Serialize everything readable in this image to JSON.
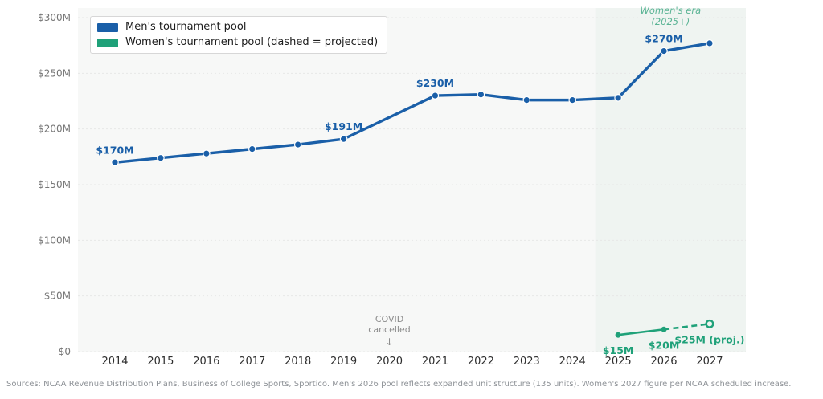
{
  "chart_data": {
    "type": "line",
    "title": "",
    "xlabel": "",
    "ylabel": "",
    "x_ticks": [
      "2014",
      "2015",
      "2016",
      "2017",
      "2018",
      "2019",
      "2020",
      "2021",
      "2022",
      "2023",
      "2024",
      "2025",
      "2026",
      "2027"
    ],
    "y_ticks": [
      {
        "value": 0,
        "label": "$0"
      },
      {
        "value": 50,
        "label": "$50M"
      },
      {
        "value": 100,
        "label": "$100M"
      },
      {
        "value": 150,
        "label": "$150M"
      },
      {
        "value": 200,
        "label": "$200M"
      },
      {
        "value": 250,
        "label": "$250M"
      },
      {
        "value": 300,
        "label": "$300M"
      }
    ],
    "ylim": [
      0,
      300
    ],
    "grid": true,
    "legend_position": "upper-left",
    "plot_background": "#f7f8f7",
    "gridline_color": "#e7e7e7",
    "series": [
      {
        "name": "Men's tournament pool",
        "color": "#1a5fa8",
        "style": "solid",
        "points": [
          [
            2014,
            170
          ],
          [
            2015,
            174
          ],
          [
            2016,
            178
          ],
          [
            2017,
            182
          ],
          [
            2018,
            186
          ],
          [
            2019,
            191
          ],
          [
            2021,
            230
          ],
          [
            2022,
            231
          ],
          [
            2023,
            226
          ],
          [
            2024,
            226
          ],
          [
            2025,
            228
          ],
          [
            2026,
            270
          ],
          [
            2027,
            277
          ]
        ]
      },
      {
        "name": "Women's tournament pool (dashed = projected)",
        "color": "#1fa179",
        "solid_points": [
          [
            2025,
            15
          ],
          [
            2026,
            20
          ]
        ],
        "projected_points": [
          [
            2026,
            20
          ],
          [
            2027,
            25
          ]
        ],
        "projected_style": "dashed",
        "last_marker": "open"
      }
    ],
    "point_labels": {
      "men": [
        {
          "year": 2014,
          "text": "$170M"
        },
        {
          "year": 2019,
          "text": "$191M"
        },
        {
          "year": 2021,
          "text": "$230M"
        },
        {
          "year": 2026,
          "text": "$270M"
        }
      ],
      "women": [
        {
          "year": 2025,
          "text": "$15M"
        },
        {
          "year": 2026,
          "text": "$20M"
        },
        {
          "year": 2027,
          "text": "$25M (proj.)"
        }
      ]
    },
    "annotations": {
      "covid": {
        "lines": [
          "COVID",
          "cancelled"
        ],
        "arrow": "↓",
        "year": 2020,
        "color": "#8c8c8c"
      },
      "era": {
        "lines": [
          "Women's era",
          "(2025+)"
        ],
        "color": "#5bb495"
      }
    },
    "shaded_region": {
      "from_year": 2024.5,
      "to": "end",
      "color": "#eff4f1"
    }
  },
  "legend": {
    "items": [
      {
        "label": "Men's tournament pool",
        "color": "#1a5fa8"
      },
      {
        "label": "Women's tournament pool (dashed = projected)",
        "color": "#1fa179"
      }
    ]
  },
  "footer": {
    "text": "Sources: NCAA Revenue Distribution Plans, Business of College Sports, Sportico. Men's 2026 pool reflects expanded unit structure (135 units). Women's 2027 figure per NCAA scheduled increase."
  }
}
